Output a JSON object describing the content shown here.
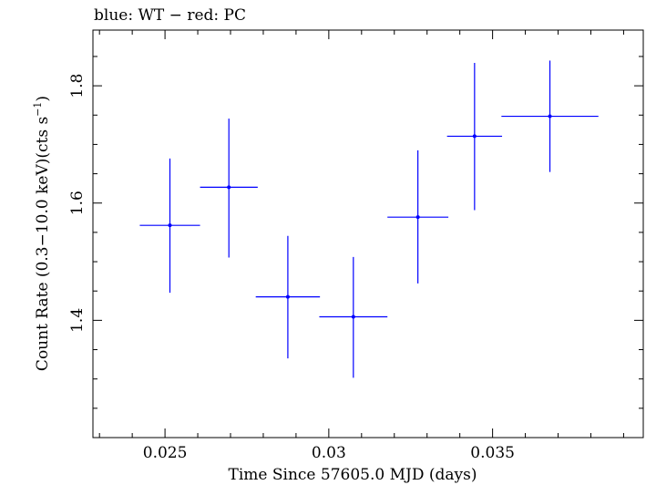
{
  "chart_data": {
    "type": "scatter",
    "title": "blue: WT − red: PC",
    "xlabel": "Time Since 57605.0 MJD (days)",
    "ylabel_main": "Count Rate (0.3−10.0 keV)(cts s",
    "ylabel_sup": "−1",
    "ylabel_end": ")",
    "xlim": [
      0.0228,
      0.0396
    ],
    "ylim": [
      1.2,
      1.895
    ],
    "x_ticks": [
      0.025,
      0.03,
      0.035
    ],
    "x_tick_labels": [
      "0.025",
      "0.03",
      "0.035"
    ],
    "y_ticks": [
      1.4,
      1.6,
      1.8
    ],
    "y_tick_labels": [
      "1.4",
      "1.6",
      "1.8"
    ],
    "grid": false,
    "series": [
      {
        "color": "#0000ff",
        "points": [
          {
            "x": 0.02515,
            "y": 1.562,
            "xerr": 0.00092,
            "yerr_low": 0.115,
            "yerr_high": 0.114
          },
          {
            "x": 0.02695,
            "y": 1.627,
            "xerr": 0.00088,
            "yerr_low": 0.12,
            "yerr_high": 0.117
          },
          {
            "x": 0.02875,
            "y": 1.44,
            "xerr": 0.00098,
            "yerr_low": 0.105,
            "yerr_high": 0.104
          },
          {
            "x": 0.03075,
            "y": 1.406,
            "xerr": 0.00104,
            "yerr_low": 0.104,
            "yerr_high": 0.102
          },
          {
            "x": 0.03272,
            "y": 1.576,
            "xerr": 0.00093,
            "yerr_low": 0.113,
            "yerr_high": 0.114
          },
          {
            "x": 0.03445,
            "y": 1.714,
            "xerr": 0.00084,
            "yerr_low": 0.126,
            "yerr_high": 0.125
          },
          {
            "x": 0.03675,
            "y": 1.748,
            "xerr": 0.00148,
            "yerr_low": 0.095,
            "yerr_high": 0.095
          }
        ]
      }
    ]
  }
}
